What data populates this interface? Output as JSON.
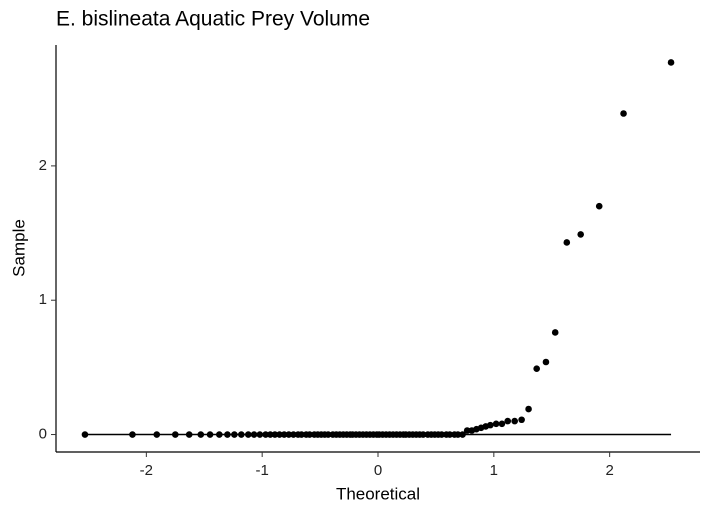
{
  "chart_data": {
    "type": "scatter",
    "title": "E. bislineata Aquatic Prey Volume",
    "x_label": "Theoretical",
    "y_label": "Sample",
    "x": [
      -2.53,
      -2.12,
      -1.91,
      -1.75,
      -1.63,
      -1.53,
      -1.45,
      -1.37,
      -1.3,
      -1.24,
      -1.18,
      -1.12,
      -1.07,
      -1.02,
      -0.97,
      -0.93,
      -0.89,
      -0.85,
      -0.81,
      -0.77,
      -0.73,
      -0.69,
      -0.66,
      -0.62,
      -0.59,
      -0.55,
      -0.52,
      -0.49,
      -0.46,
      -0.43,
      -0.39,
      -0.36,
      -0.33,
      -0.3,
      -0.27,
      -0.24,
      -0.22,
      -0.19,
      -0.16,
      -0.13,
      -0.1,
      -0.07,
      -0.04,
      -0.01,
      0.01,
      0.04,
      0.07,
      0.1,
      0.13,
      0.16,
      0.19,
      0.22,
      0.24,
      0.27,
      0.3,
      0.33,
      0.36,
      0.39,
      0.43,
      0.46,
      0.49,
      0.52,
      0.55,
      0.59,
      0.62,
      0.66,
      0.69,
      0.73,
      0.77,
      0.81,
      0.85,
      0.89,
      0.93,
      0.97,
      1.02,
      1.07,
      1.12,
      1.18,
      1.24,
      1.3,
      1.37,
      1.45,
      1.53,
      1.63,
      1.75,
      1.91,
      2.12,
      2.53
    ],
    "values": [
      0,
      0,
      0,
      0,
      0,
      0,
      0,
      0,
      0,
      0,
      0,
      0,
      0,
      0,
      0,
      0,
      0,
      0,
      0,
      0,
      0,
      0,
      0,
      0,
      0,
      0,
      0,
      0,
      0,
      0,
      0,
      0,
      0,
      0,
      0,
      0,
      0,
      0,
      0,
      0,
      0,
      0,
      0,
      0,
      0,
      0,
      0,
      0,
      0,
      0,
      0,
      0,
      0,
      0,
      0,
      0,
      0,
      0,
      0,
      0,
      0,
      0,
      0,
      0,
      0,
      0,
      0,
      0,
      0.03,
      0.03,
      0.04,
      0.05,
      0.06,
      0.07,
      0.08,
      0.08,
      0.1,
      0.1,
      0.11,
      0.19,
      0.49,
      0.54,
      0.76,
      1.43,
      1.49,
      1.7,
      2.39,
      2.77
    ],
    "color": "#000000",
    "reference_line": {
      "x": [
        -2.53,
        2.53
      ],
      "y": [
        0,
        0
      ]
    },
    "xlim": [
      -2.78,
      2.78
    ],
    "ylim": [
      -0.13,
      2.9
    ],
    "xticks": [
      -2,
      -1,
      0,
      1,
      2
    ],
    "yticks": [
      0,
      1,
      2
    ],
    "grid": false
  }
}
